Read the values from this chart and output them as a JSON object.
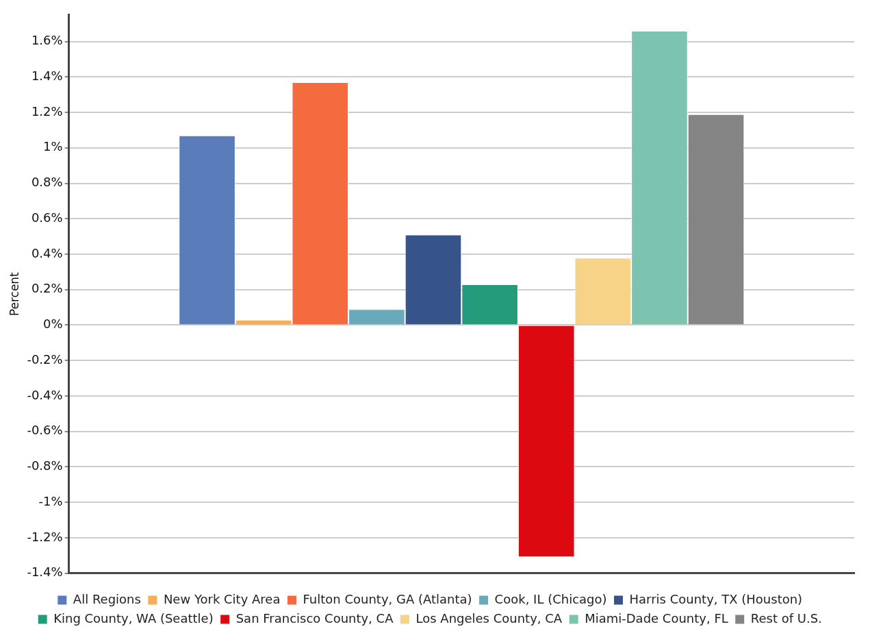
{
  "chart_data": {
    "type": "bar",
    "ylabel": "Percent",
    "categories": [
      null
    ],
    "series": [
      {
        "name": "All Regions",
        "color": "#5b7cbb",
        "values": [
          1.07
        ]
      },
      {
        "name": "New York City Area",
        "color": "#f7ae59",
        "values": [
          0.03
        ]
      },
      {
        "name": "Fulton County, GA (Atlanta)",
        "color": "#f46b3f",
        "values": [
          1.37
        ]
      },
      {
        "name": "Cook, IL (Chicago)",
        "color": "#6aa9bc",
        "values": [
          0.09
        ]
      },
      {
        "name": "Harris County, TX (Houston)",
        "color": "#36538a",
        "values": [
          0.51
        ]
      },
      {
        "name": "King County, WA (Seattle)",
        "color": "#249c7c",
        "values": [
          0.23
        ]
      },
      {
        "name": "San Francisco County, CA",
        "color": "#dc0a10",
        "values": [
          -1.31
        ]
      },
      {
        "name": "Los Angeles County, CA",
        "color": "#f6d386",
        "values": [
          0.38
        ]
      },
      {
        "name": "Miami-Dade County, FL",
        "color": "#7dc4b0",
        "values": [
          1.66
        ]
      },
      {
        "name": "Rest of U.S.",
        "color": "#848484",
        "values": [
          1.19
        ]
      }
    ],
    "ylim": [
      -1.4,
      1.75
    ],
    "yticks": [
      {
        "value": -1.4,
        "label": "-1.4%"
      },
      {
        "value": -1.2,
        "label": "-1.2%"
      },
      {
        "value": -1,
        "label": "-1%"
      },
      {
        "value": -0.8,
        "label": "-0.8%"
      },
      {
        "value": -0.6,
        "label": "-0.6%"
      },
      {
        "value": -0.4,
        "label": "-0.4%"
      },
      {
        "value": -0.2,
        "label": "-0.2%"
      },
      {
        "value": 0,
        "label": "0%"
      },
      {
        "value": 0.2,
        "label": "0.2%"
      },
      {
        "value": 0.4,
        "label": "0.4%"
      },
      {
        "value": 0.6,
        "label": "0.6%"
      },
      {
        "value": 0.8,
        "label": "0.8%"
      },
      {
        "value": 1,
        "label": "1%"
      },
      {
        "value": 1.2,
        "label": "1.2%"
      },
      {
        "value": 1.4,
        "label": "1.4%"
      },
      {
        "value": 1.6,
        "label": "1.6%"
      }
    ],
    "grid": "y",
    "legend": "bottom"
  }
}
